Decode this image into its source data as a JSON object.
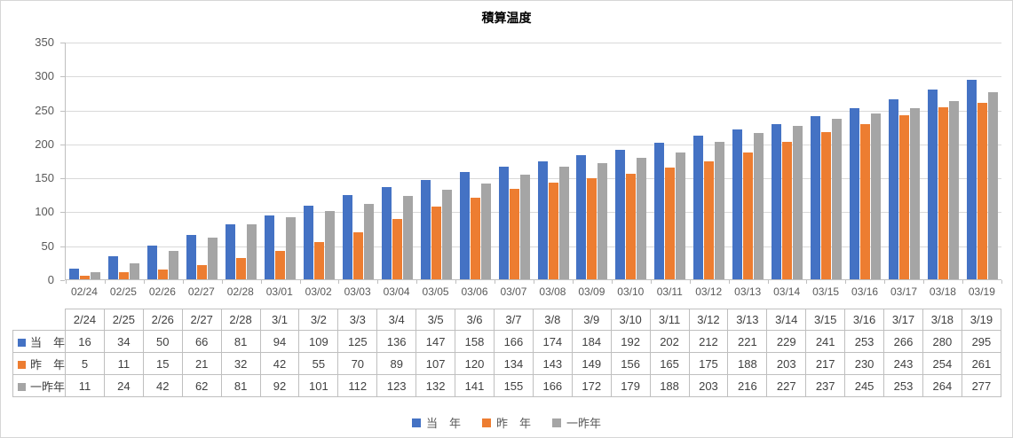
{
  "figure": {
    "title": "積算温度"
  },
  "chart_data": {
    "type": "bar",
    "title": "積算温度",
    "xlabel": "",
    "ylabel": "",
    "ylim": [
      0,
      350
    ],
    "y_ticks": [
      0,
      50,
      100,
      150,
      200,
      250,
      300,
      350
    ],
    "grid": true,
    "legend_position": "bottom",
    "x_labels": [
      "02/24",
      "02/25",
      "02/26",
      "02/27",
      "02/28",
      "03/01",
      "03/02",
      "03/03",
      "03/04",
      "03/05",
      "03/06",
      "03/07",
      "03/08",
      "03/09",
      "03/10",
      "03/11",
      "03/12",
      "03/13",
      "03/14",
      "03/15",
      "03/16",
      "03/17",
      "03/18",
      "03/19"
    ],
    "series": [
      {
        "name": "当　年",
        "color": "#4472C4",
        "values": [
          16,
          34,
          50,
          66,
          81,
          94,
          109,
          125,
          136,
          147,
          158,
          166,
          174,
          184,
          192,
          202,
          212,
          221,
          229,
          241,
          253,
          266,
          280,
          295
        ]
      },
      {
        "name": "昨　年",
        "color": "#ED7D31",
        "values": [
          5,
          11,
          15,
          21,
          32,
          42,
          55,
          70,
          89,
          107,
          120,
          134,
          143,
          149,
          156,
          165,
          175,
          188,
          203,
          217,
          230,
          243,
          254,
          261
        ]
      },
      {
        "name": "一昨年",
        "color": "#A5A5A5",
        "values": [
          11,
          24,
          42,
          62,
          81,
          92,
          101,
          112,
          123,
          132,
          141,
          155,
          166,
          172,
          179,
          188,
          203,
          216,
          227,
          237,
          245,
          253,
          264,
          277
        ]
      }
    ]
  },
  "data_table": {
    "corner_label": "",
    "columns": [
      "2/24",
      "2/25",
      "2/26",
      "2/27",
      "2/28",
      "3/1",
      "3/2",
      "3/3",
      "3/4",
      "3/5",
      "3/6",
      "3/7",
      "3/8",
      "3/9",
      "3/10",
      "3/11",
      "3/12",
      "3/13",
      "3/14",
      "3/15",
      "3/16",
      "3/17",
      "3/18",
      "3/19"
    ],
    "rows": [
      {
        "label": "当　年",
        "color": "#4472C4",
        "values": [
          16,
          34,
          50,
          66,
          81,
          94,
          109,
          125,
          136,
          147,
          158,
          166,
          174,
          184,
          192,
          202,
          212,
          221,
          229,
          241,
          253,
          266,
          280,
          295
        ]
      },
      {
        "label": "昨　年",
        "color": "#ED7D31",
        "values": [
          5,
          11,
          15,
          21,
          32,
          42,
          55,
          70,
          89,
          107,
          120,
          134,
          143,
          149,
          156,
          165,
          175,
          188,
          203,
          217,
          230,
          243,
          254,
          261
        ]
      },
      {
        "label": "一昨年",
        "color": "#A5A5A5",
        "values": [
          11,
          24,
          42,
          62,
          81,
          92,
          101,
          112,
          123,
          132,
          141,
          155,
          166,
          172,
          179,
          188,
          203,
          216,
          227,
          237,
          245,
          253,
          264,
          277
        ]
      }
    ]
  },
  "legend": {
    "items": [
      {
        "label": "当　年",
        "color": "#4472C4"
      },
      {
        "label": "昨　年",
        "color": "#ED7D31"
      },
      {
        "label": "一昨年",
        "color": "#A5A5A5"
      }
    ]
  },
  "colors": {
    "series_blue": "#4472C4",
    "series_orange": "#ED7D31",
    "series_gray": "#A5A5A5",
    "gridline": "#D9D9D9",
    "axis_line": "#BFBFBF",
    "table_border": "#BFBFBF",
    "axis_text": "#595959",
    "table_text": "#404040",
    "title_text": "#000000",
    "background": "#FFFFFF"
  }
}
